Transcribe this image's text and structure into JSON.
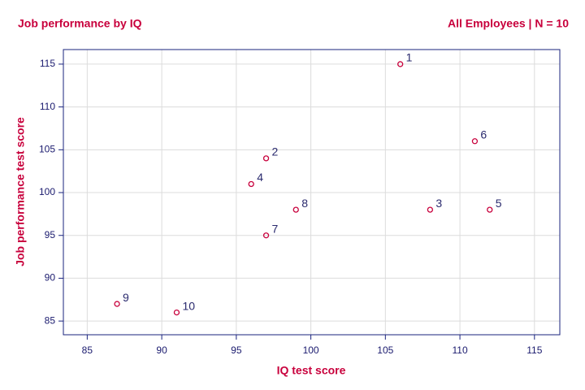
{
  "chart_data": {
    "type": "scatter",
    "title": "Job performance by IQ",
    "subtitle": "All Employees | N = 10",
    "x_label": "IQ test score",
    "y_label": "Job performance test score",
    "x": [
      106,
      97,
      108,
      96,
      112,
      111,
      97,
      99,
      87,
      91
    ],
    "values": [
      115,
      104,
      98,
      101,
      98,
      106,
      95,
      98,
      87,
      86
    ],
    "point_labels": [
      "1",
      "2",
      "3",
      "4",
      "5",
      "6",
      "7",
      "8",
      "9",
      "10"
    ],
    "color": "#c8003c",
    "xlim": [
      83.4,
      116.7
    ],
    "ylim": [
      83.4,
      116.7
    ],
    "xticks": [
      85,
      90,
      95,
      100,
      105,
      110,
      115
    ],
    "yticks": [
      85,
      90,
      95,
      100,
      105,
      110,
      115
    ],
    "grid": true
  }
}
